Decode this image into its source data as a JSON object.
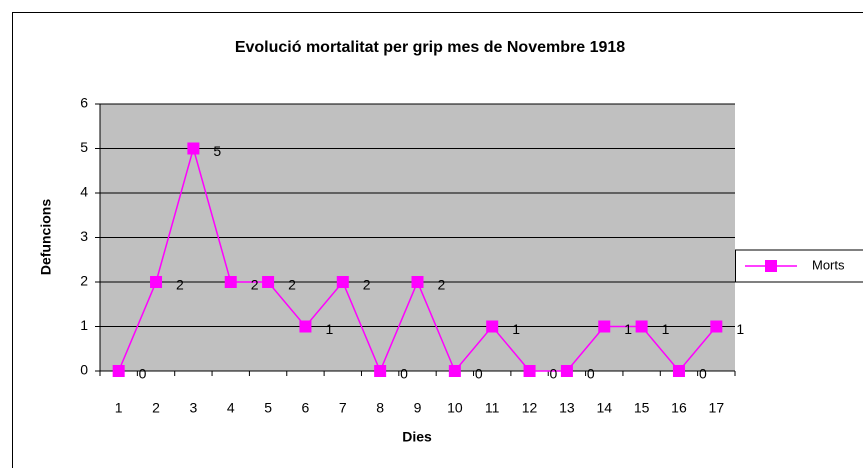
{
  "chart_data": {
    "type": "line",
    "title": "Evolució mortalitat per grip mes  de Novembre 1918",
    "x_label": "Dies",
    "y_label": "Defuncions",
    "categories": [
      "1",
      "2",
      "3",
      "4",
      "5",
      "6",
      "7",
      "8",
      "9",
      "10",
      "11",
      "12",
      "13",
      "14",
      "15",
      "16",
      "17"
    ],
    "series": [
      {
        "name": "Morts",
        "color": "#ff00ff",
        "values": [
          0,
          2,
          5,
          2,
          2,
          1,
          2,
          0,
          2,
          0,
          1,
          0,
          0,
          1,
          1,
          0,
          1
        ]
      }
    ],
    "ylim": [
      0,
      6
    ],
    "yticks": [
      0,
      1,
      2,
      3,
      4,
      5,
      6
    ],
    "grid": true,
    "legend": "right",
    "plot_background": "#c0c0c0"
  }
}
